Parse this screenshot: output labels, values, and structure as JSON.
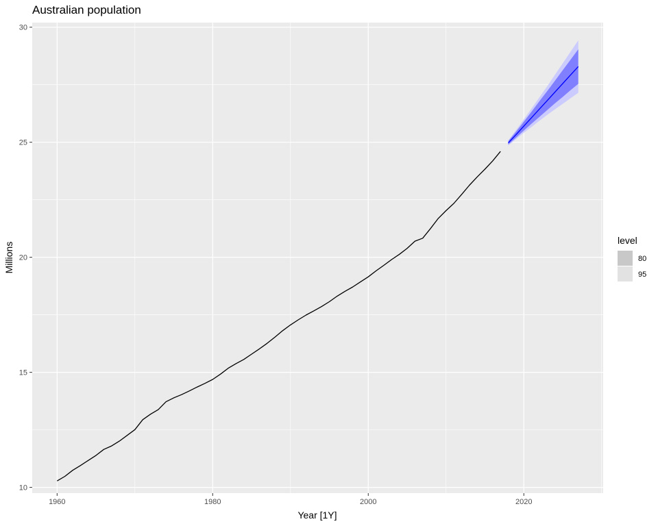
{
  "chart_data": {
    "type": "line",
    "title": "Australian population",
    "xlabel": "Year [1Y]",
    "ylabel": "Millions",
    "xlim": [
      1956.8,
      2030.2
    ],
    "ylim": [
      9.75,
      30.2
    ],
    "x_ticks": [
      1960,
      1980,
      2000,
      2020
    ],
    "y_ticks": [
      10,
      15,
      20,
      25,
      30
    ],
    "grid": true,
    "series": [
      {
        "x": [
          1960,
          1961,
          1962,
          1963,
          1964,
          1965,
          1966,
          1967,
          1968,
          1969,
          1970,
          1971,
          1972,
          1973,
          1974,
          1975,
          1976,
          1977,
          1978,
          1979,
          1980,
          1981,
          1982,
          1983,
          1984,
          1985,
          1986,
          1987,
          1988,
          1989,
          1990,
          1991,
          1992,
          1993,
          1994,
          1995,
          1996,
          1997,
          1998,
          1999,
          2000,
          2001,
          2002,
          2003,
          2004,
          2005,
          2006,
          2007,
          2008,
          2009,
          2010,
          2011,
          2012,
          2013,
          2014,
          2015,
          2016,
          2017
        ],
        "values": [
          10.28,
          10.48,
          10.74,
          10.95,
          11.17,
          11.39,
          11.65,
          11.8,
          12.01,
          12.26,
          12.51,
          12.94,
          13.18,
          13.38,
          13.72,
          13.89,
          14.03,
          14.19,
          14.36,
          14.52,
          14.69,
          14.92,
          15.18,
          15.38,
          15.56,
          15.79,
          16.02,
          16.26,
          16.53,
          16.81,
          17.06,
          17.28,
          17.49,
          17.67,
          17.86,
          18.07,
          18.31,
          18.52,
          18.71,
          18.93,
          19.15,
          19.41,
          19.65,
          19.9,
          20.13,
          20.39,
          20.7,
          20.83,
          21.25,
          21.69,
          22.03,
          22.34,
          22.73,
          23.13,
          23.49,
          23.83,
          24.19,
          24.6
        ],
        "color": "#000000"
      },
      {
        "x": [
          2018,
          2019,
          2020,
          2021,
          2022,
          2023,
          2024,
          2025,
          2026,
          2027
        ],
        "values": [
          24.97,
          25.33,
          25.7,
          26.07,
          26.44,
          26.81,
          27.18,
          27.55,
          27.92,
          28.29
        ],
        "lower80": [
          24.9,
          25.2,
          25.51,
          25.81,
          26.1,
          26.4,
          26.69,
          26.97,
          27.26,
          27.54
        ],
        "upper80": [
          25.04,
          25.46,
          25.89,
          26.33,
          26.78,
          27.22,
          27.67,
          28.13,
          28.58,
          29.04
        ],
        "lower95": [
          24.86,
          25.13,
          25.41,
          25.67,
          25.93,
          26.19,
          26.43,
          26.67,
          26.91,
          27.15
        ],
        "upper95": [
          25.08,
          25.53,
          25.99,
          26.47,
          26.95,
          27.43,
          27.93,
          28.43,
          28.93,
          29.43
        ],
        "color": "#0000ff"
      }
    ],
    "legend": {
      "title": "level",
      "entries": [
        {
          "label": "80",
          "color": "#c8c8c8"
        },
        {
          "label": "95",
          "color": "#e2e2e2"
        }
      ],
      "position": "right"
    },
    "colors": {
      "panel": "#ebebeb",
      "grid_major": "#ffffff",
      "band80": "#6666ff",
      "band95": "#c8c8ff"
    }
  }
}
